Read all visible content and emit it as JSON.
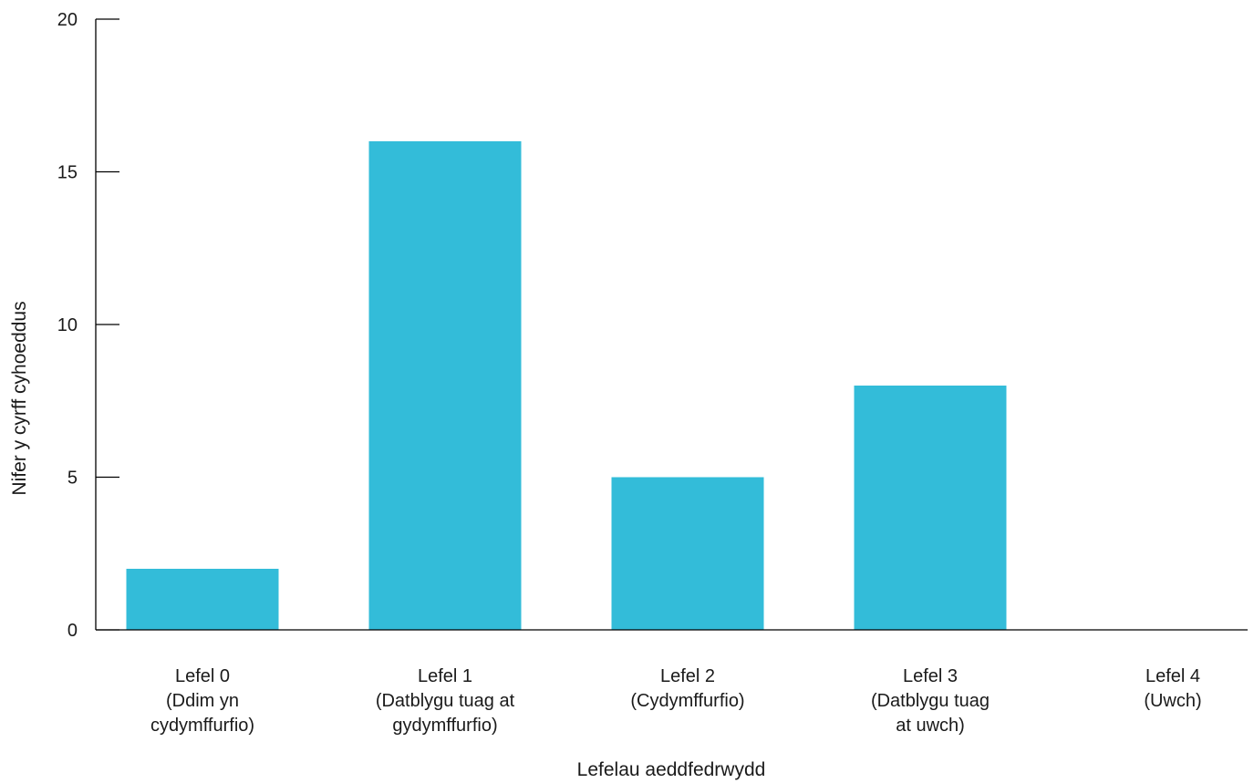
{
  "chart_data": {
    "type": "bar",
    "xlabel": "Lefelau aeddfedrwydd",
    "ylabel": "Nifer y cyrff cyhoeddus",
    "ylim": [
      0,
      20
    ],
    "yticks": [
      0,
      5,
      10,
      15,
      20
    ],
    "grid": false,
    "bar_color": "#33bcd9",
    "categories": [
      [
        "Lefel 0",
        "(Ddim yn",
        "cydymffurfio)"
      ],
      [
        "Lefel 1",
        "(Datblygu tuag at",
        "gydymffurfio)"
      ],
      [
        "Lefel 2",
        "(Cydymffurfio)"
      ],
      [
        "Lefel 3",
        "(Datblygu tuag",
        "at uwch)"
      ],
      [
        "Lefel 4",
        "(Uwch)"
      ]
    ],
    "values": [
      2,
      16,
      5,
      8,
      0
    ]
  }
}
